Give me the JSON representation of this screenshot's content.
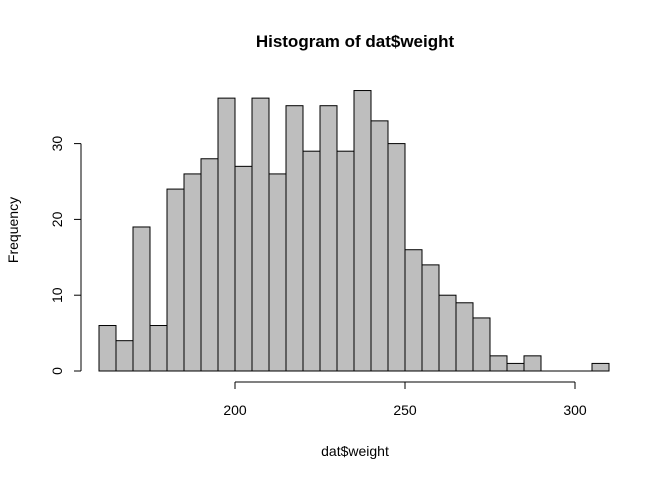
{
  "chart_data": {
    "type": "histogram",
    "title": "Histogram of dat$weight",
    "xlabel": "dat$weight",
    "ylabel": "Frequency",
    "bin_width": 5,
    "bins": [
      {
        "start": 160,
        "end": 165,
        "count": 6
      },
      {
        "start": 165,
        "end": 170,
        "count": 4
      },
      {
        "start": 170,
        "end": 175,
        "count": 19
      },
      {
        "start": 175,
        "end": 180,
        "count": 6
      },
      {
        "start": 180,
        "end": 185,
        "count": 24
      },
      {
        "start": 185,
        "end": 190,
        "count": 26
      },
      {
        "start": 190,
        "end": 195,
        "count": 28
      },
      {
        "start": 195,
        "end": 200,
        "count": 36
      },
      {
        "start": 200,
        "end": 205,
        "count": 27
      },
      {
        "start": 205,
        "end": 210,
        "count": 36
      },
      {
        "start": 210,
        "end": 215,
        "count": 26
      },
      {
        "start": 215,
        "end": 220,
        "count": 35
      },
      {
        "start": 220,
        "end": 225,
        "count": 29
      },
      {
        "start": 225,
        "end": 230,
        "count": 35
      },
      {
        "start": 230,
        "end": 235,
        "count": 29
      },
      {
        "start": 235,
        "end": 240,
        "count": 37
      },
      {
        "start": 240,
        "end": 245,
        "count": 33
      },
      {
        "start": 245,
        "end": 250,
        "count": 30
      },
      {
        "start": 250,
        "end": 255,
        "count": 16
      },
      {
        "start": 255,
        "end": 260,
        "count": 14
      },
      {
        "start": 260,
        "end": 265,
        "count": 10
      },
      {
        "start": 265,
        "end": 270,
        "count": 9
      },
      {
        "start": 270,
        "end": 275,
        "count": 7
      },
      {
        "start": 275,
        "end": 280,
        "count": 2
      },
      {
        "start": 280,
        "end": 285,
        "count": 1
      },
      {
        "start": 285,
        "end": 290,
        "count": 2
      },
      {
        "start": 290,
        "end": 295,
        "count": 0
      },
      {
        "start": 295,
        "end": 300,
        "count": 0
      },
      {
        "start": 300,
        "end": 305,
        "count": 0
      },
      {
        "start": 305,
        "end": 310,
        "count": 1
      }
    ],
    "xlim": [
      160,
      310
    ],
    "ylim": [
      0,
      37
    ],
    "x_ticks": [
      200,
      250,
      300
    ],
    "y_ticks": [
      0,
      10,
      20,
      30
    ],
    "bar_fill": "#bebebe",
    "bar_stroke": "#000000",
    "grid": false,
    "legend": "none"
  }
}
